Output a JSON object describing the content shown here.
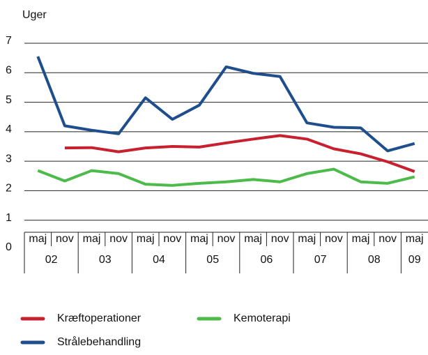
{
  "chart_data": {
    "type": "line",
    "y_label": "Uger",
    "categories": [
      "maj",
      "nov",
      "maj",
      "nov",
      "maj",
      "nov",
      "maj",
      "nov",
      "maj",
      "nov",
      "maj",
      "nov",
      "maj",
      "nov",
      "maj"
    ],
    "year_labels": [
      "02",
      "03",
      "04",
      "05",
      "06",
      "07",
      "08",
      "09"
    ],
    "series": [
      {
        "name": "Kræftoperationer",
        "color": "#c8202f",
        "values": [
          null,
          3.45,
          3.46,
          3.32,
          3.45,
          3.5,
          3.48,
          3.62,
          3.75,
          3.87,
          3.75,
          3.42,
          3.25,
          2.98,
          2.65
        ]
      },
      {
        "name": "Kemoterapi",
        "color": "#4cbb4a",
        "values": [
          2.68,
          2.33,
          2.68,
          2.58,
          2.22,
          2.18,
          2.25,
          2.3,
          2.38,
          2.3,
          2.58,
          2.73,
          2.3,
          2.25,
          2.47
        ]
      },
      {
        "name": "Strålebehandling",
        "color": "#1f4e8c",
        "values": [
          6.55,
          4.2,
          4.05,
          3.93,
          5.15,
          4.42,
          4.9,
          6.2,
          5.98,
          5.87,
          4.3,
          4.15,
          4.13,
          3.35,
          3.6
        ]
      }
    ],
    "ylim": [
      0,
      7
    ],
    "yticks": [
      0,
      1,
      2,
      3,
      4,
      5,
      6,
      7
    ],
    "grid": true
  }
}
